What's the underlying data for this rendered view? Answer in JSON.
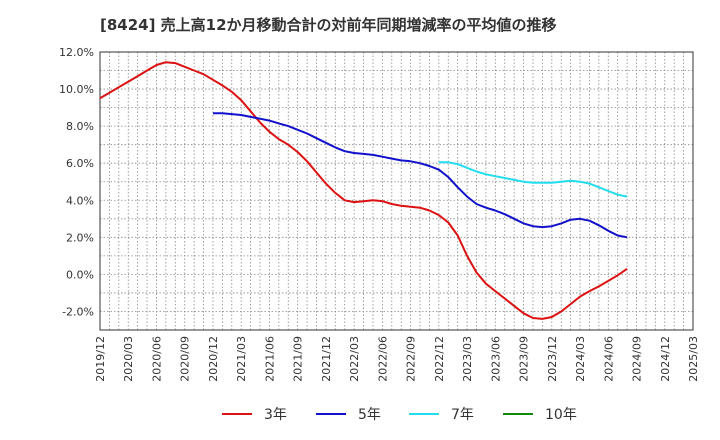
{
  "chart_data": {
    "type": "line",
    "title": "[8424]  売上高12か月移動合計の対前年同期増減率の平均値の推移",
    "ylim": [
      -3,
      12
    ],
    "y_ticks": [
      "12.0%",
      "10.0%",
      "8.0%",
      "6.0%",
      "4.0%",
      "2.0%",
      "0.0%",
      "-2.0%"
    ],
    "y_tick_values": [
      12,
      10,
      8,
      6,
      4,
      2,
      0,
      -2
    ],
    "x_tick_labels": [
      "2019/12",
      "2020/03",
      "2020/06",
      "2020/09",
      "2020/12",
      "2021/03",
      "2021/06",
      "2021/09",
      "2021/12",
      "2022/03",
      "2022/06",
      "2022/09",
      "2022/12",
      "2023/03",
      "2023/06",
      "2023/09",
      "2023/12",
      "2024/03",
      "2024/06",
      "2024/09",
      "2024/12",
      "2025/03"
    ],
    "grid": true,
    "legend_position": "bottom",
    "series": [
      {
        "name": "3年",
        "color": "#dd1111",
        "points": [
          [
            "2019/12",
            9.5
          ],
          [
            "2020/01",
            9.8
          ],
          [
            "2020/02",
            10.1
          ],
          [
            "2020/03",
            10.4
          ],
          [
            "2020/04",
            10.7
          ],
          [
            "2020/05",
            11.0
          ],
          [
            "2020/06",
            11.3
          ],
          [
            "2020/07",
            11.45
          ],
          [
            "2020/08",
            11.4
          ],
          [
            "2020/09",
            11.2
          ],
          [
            "2020/10",
            11.0
          ],
          [
            "2020/11",
            10.8
          ],
          [
            "2020/12",
            10.5
          ],
          [
            "2021/01",
            10.2
          ],
          [
            "2021/02",
            9.85
          ],
          [
            "2021/03",
            9.4
          ],
          [
            "2021/04",
            8.8
          ],
          [
            "2021/05",
            8.2
          ],
          [
            "2021/06",
            7.7
          ],
          [
            "2021/07",
            7.3
          ],
          [
            "2021/08",
            7.0
          ],
          [
            "2021/09",
            6.6
          ],
          [
            "2021/10",
            6.1
          ],
          [
            "2021/11",
            5.5
          ],
          [
            "2021/12",
            4.9
          ],
          [
            "2022/01",
            4.4
          ],
          [
            "2022/02",
            4.0
          ],
          [
            "2022/03",
            3.9
          ],
          [
            "2022/04",
            3.95
          ],
          [
            "2022/05",
            4.0
          ],
          [
            "2022/06",
            3.95
          ],
          [
            "2022/07",
            3.8
          ],
          [
            "2022/08",
            3.7
          ],
          [
            "2022/09",
            3.65
          ],
          [
            "2022/10",
            3.6
          ],
          [
            "2022/11",
            3.45
          ],
          [
            "2022/12",
            3.2
          ],
          [
            "2023/01",
            2.8
          ],
          [
            "2023/02",
            2.1
          ],
          [
            "2023/03",
            1.0
          ],
          [
            "2023/04",
            0.1
          ],
          [
            "2023/05",
            -0.5
          ],
          [
            "2023/06",
            -0.9
          ],
          [
            "2023/07",
            -1.3
          ],
          [
            "2023/08",
            -1.7
          ],
          [
            "2023/09",
            -2.1
          ],
          [
            "2023/10",
            -2.35
          ],
          [
            "2023/11",
            -2.4
          ],
          [
            "2023/12",
            -2.3
          ],
          [
            "2024/01",
            -2.0
          ],
          [
            "2024/02",
            -1.6
          ],
          [
            "2024/03",
            -1.2
          ],
          [
            "2024/04",
            -0.9
          ],
          [
            "2024/05",
            -0.65
          ],
          [
            "2024/06",
            -0.35
          ],
          [
            "2024/07",
            -0.05
          ],
          [
            "2024/08",
            0.3
          ]
        ]
      },
      {
        "name": "5年",
        "color": "#1111cc",
        "points": [
          [
            "2020/12",
            8.7
          ],
          [
            "2021/01",
            8.7
          ],
          [
            "2021/02",
            8.65
          ],
          [
            "2021/03",
            8.6
          ],
          [
            "2021/04",
            8.5
          ],
          [
            "2021/05",
            8.4
          ],
          [
            "2021/06",
            8.3
          ],
          [
            "2021/07",
            8.15
          ],
          [
            "2021/08",
            8.0
          ],
          [
            "2021/09",
            7.8
          ],
          [
            "2021/10",
            7.6
          ],
          [
            "2021/11",
            7.35
          ],
          [
            "2021/12",
            7.1
          ],
          [
            "2022/01",
            6.85
          ],
          [
            "2022/02",
            6.65
          ],
          [
            "2022/03",
            6.55
          ],
          [
            "2022/04",
            6.5
          ],
          [
            "2022/05",
            6.45
          ],
          [
            "2022/06",
            6.35
          ],
          [
            "2022/07",
            6.25
          ],
          [
            "2022/08",
            6.15
          ],
          [
            "2022/09",
            6.1
          ],
          [
            "2022/10",
            6.0
          ],
          [
            "2022/11",
            5.85
          ],
          [
            "2022/12",
            5.65
          ],
          [
            "2023/01",
            5.25
          ],
          [
            "2023/02",
            4.7
          ],
          [
            "2023/03",
            4.2
          ],
          [
            "2023/04",
            3.8
          ],
          [
            "2023/05",
            3.6
          ],
          [
            "2023/06",
            3.45
          ],
          [
            "2023/07",
            3.25
          ],
          [
            "2023/08",
            3.0
          ],
          [
            "2023/09",
            2.75
          ],
          [
            "2023/10",
            2.6
          ],
          [
            "2023/11",
            2.55
          ],
          [
            "2023/12",
            2.6
          ],
          [
            "2024/01",
            2.75
          ],
          [
            "2024/02",
            2.95
          ],
          [
            "2024/03",
            3.0
          ],
          [
            "2024/04",
            2.9
          ],
          [
            "2024/05",
            2.65
          ],
          [
            "2024/06",
            2.35
          ],
          [
            "2024/07",
            2.1
          ],
          [
            "2024/08",
            2.0
          ]
        ]
      },
      {
        "name": "7年",
        "color": "#22ddee",
        "points": [
          [
            "2022/12",
            6.05
          ],
          [
            "2023/01",
            6.05
          ],
          [
            "2023/02",
            5.95
          ],
          [
            "2023/03",
            5.75
          ],
          [
            "2023/04",
            5.55
          ],
          [
            "2023/05",
            5.4
          ],
          [
            "2023/06",
            5.3
          ],
          [
            "2023/07",
            5.2
          ],
          [
            "2023/08",
            5.1
          ],
          [
            "2023/09",
            5.0
          ],
          [
            "2023/10",
            4.95
          ],
          [
            "2023/11",
            4.95
          ],
          [
            "2023/12",
            4.95
          ],
          [
            "2024/01",
            5.0
          ],
          [
            "2024/02",
            5.05
          ],
          [
            "2024/03",
            5.0
          ],
          [
            "2024/04",
            4.9
          ],
          [
            "2024/05",
            4.7
          ],
          [
            "2024/06",
            4.5
          ],
          [
            "2024/07",
            4.3
          ],
          [
            "2024/08",
            4.2
          ]
        ]
      },
      {
        "name": "10年",
        "color": "#118811",
        "points": []
      }
    ]
  }
}
